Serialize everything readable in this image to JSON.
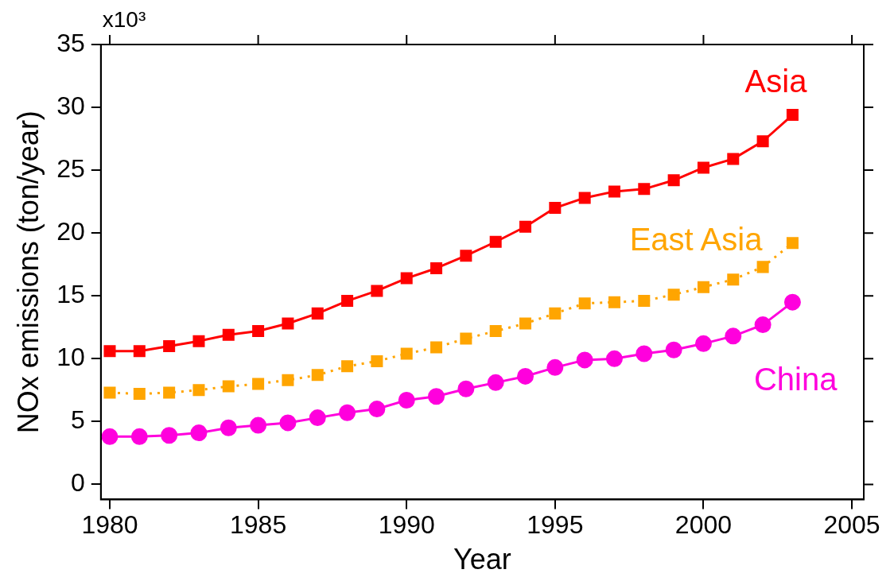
{
  "chart_data": {
    "type": "line",
    "xlabel": "Year",
    "ylabel": "NOx emissions (ton/year)",
    "annotations": [
      "x10³"
    ],
    "x": [
      1980,
      1981,
      1982,
      1983,
      1984,
      1985,
      1986,
      1987,
      1988,
      1989,
      1990,
      1991,
      1992,
      1993,
      1994,
      1995,
      1996,
      1997,
      1998,
      1999,
      2000,
      2001,
      2002,
      2003
    ],
    "series": [
      {
        "name": "Asia",
        "color": "#ff0000",
        "marker": "square",
        "line_style": "solid",
        "values": [
          10.6,
          10.6,
          11.0,
          11.4,
          11.9,
          12.2,
          12.8,
          13.6,
          14.6,
          15.4,
          16.4,
          17.2,
          18.2,
          19.3,
          20.5,
          22.0,
          22.8,
          23.3,
          23.5,
          24.2,
          25.2,
          25.9,
          27.3,
          29.4
        ]
      },
      {
        "name": "East Asia",
        "color": "#ffa500",
        "marker": "square",
        "line_style": "dotted",
        "values": [
          7.3,
          7.2,
          7.3,
          7.5,
          7.8,
          8.0,
          8.3,
          8.7,
          9.4,
          9.8,
          10.4,
          10.9,
          11.6,
          12.2,
          12.8,
          13.6,
          14.4,
          14.5,
          14.6,
          15.1,
          15.7,
          16.3,
          17.3,
          19.2
        ]
      },
      {
        "name": "China",
        "color": "#ff00dd",
        "marker": "circle",
        "line_style": "solid",
        "values": [
          3.8,
          3.8,
          3.9,
          4.1,
          4.5,
          4.7,
          4.9,
          5.3,
          5.7,
          6.0,
          6.7,
          7.0,
          7.6,
          8.1,
          8.6,
          9.3,
          9.9,
          10.0,
          10.4,
          10.7,
          11.2,
          11.8,
          12.7,
          14.5
        ]
      }
    ],
    "xlim": [
      1979.7,
      2005.4
    ],
    "xticks": [
      1980,
      1985,
      1990,
      1995,
      2000,
      2005
    ],
    "ylim": [
      -1.2,
      35
    ],
    "yticks": [
      0,
      5,
      10,
      15,
      20,
      25,
      30,
      35
    ],
    "grid": false,
    "legend": false
  }
}
